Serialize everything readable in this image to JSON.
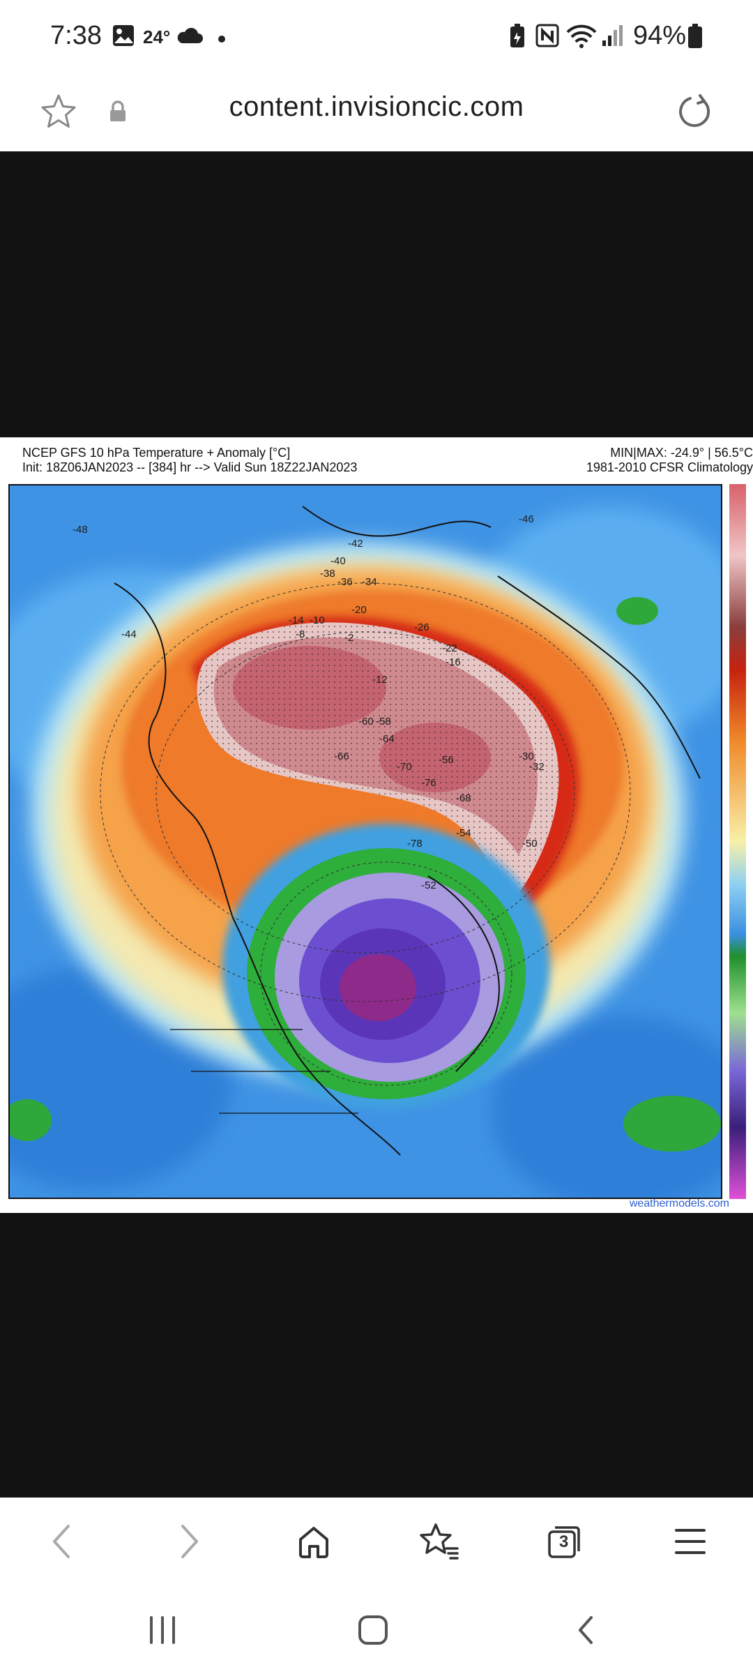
{
  "status_bar": {
    "time": "7:38",
    "temperature": "24°",
    "battery": "94%",
    "icons": [
      "gallery-icon",
      "cloud-icon",
      "dot-icon",
      "battery-saver-icon",
      "nfc-icon",
      "wifi-icon",
      "signal-icon",
      "battery-icon"
    ]
  },
  "address_bar": {
    "url": "content.invisioncic.com",
    "icons": [
      "star-icon",
      "lock-icon",
      "reload-icon"
    ]
  },
  "weather_map": {
    "title_line1": "NCEP GFS 10 hPa Temperature + Anomaly [°C]",
    "title_line2": "Init: 18Z06JAN2023 -- [384] hr --> Valid Sun 18Z22JAN2023",
    "right_line1": "MIN|MAX: -24.9° | 56.5°C",
    "right_line2": "1981-2010 CFSR Climatology",
    "credit": "weathermodels.com",
    "colors": {
      "warm_core": "#c96a73",
      "orange": "#ef7d2a",
      "red": "#d9281a",
      "cold_core": "#7a2a86",
      "purple": "#6b4fd0",
      "green": "#2dab38",
      "blue": "#3e8ee0",
      "light": "#f5e6a8"
    },
    "contour_labels": [
      {
        "text": "-48"
      },
      {
        "text": "-46"
      },
      {
        "text": "-44"
      },
      {
        "text": "-42"
      },
      {
        "text": "-40"
      },
      {
        "text": "-38"
      },
      {
        "text": "-36"
      },
      {
        "text": "-34"
      },
      {
        "text": "-32"
      },
      {
        "text": "-30"
      },
      {
        "text": "-26"
      },
      {
        "text": "-22"
      },
      {
        "text": "-20"
      },
      {
        "text": "-16"
      },
      {
        "text": "-14"
      },
      {
        "text": "-12"
      },
      {
        "text": "-10"
      },
      {
        "text": "-8"
      },
      {
        "text": "-2"
      },
      {
        "text": "-50"
      },
      {
        "text": "-52"
      },
      {
        "text": "-54"
      },
      {
        "text": "-56"
      },
      {
        "text": "-58"
      },
      {
        "text": "-60"
      },
      {
        "text": "-64"
      },
      {
        "text": "-66"
      },
      {
        "text": "-68"
      },
      {
        "text": "-70"
      },
      {
        "text": "-76"
      },
      {
        "text": "-78"
      }
    ]
  },
  "toolbar": {
    "tab_count": "3",
    "icons": [
      "back-icon",
      "forward-icon",
      "home-icon",
      "bookmarks-icon",
      "tabs-icon",
      "menu-icon"
    ]
  },
  "nav_bar": {
    "icons": [
      "recent-apps-icon",
      "home-nav-icon",
      "back-nav-icon"
    ]
  }
}
